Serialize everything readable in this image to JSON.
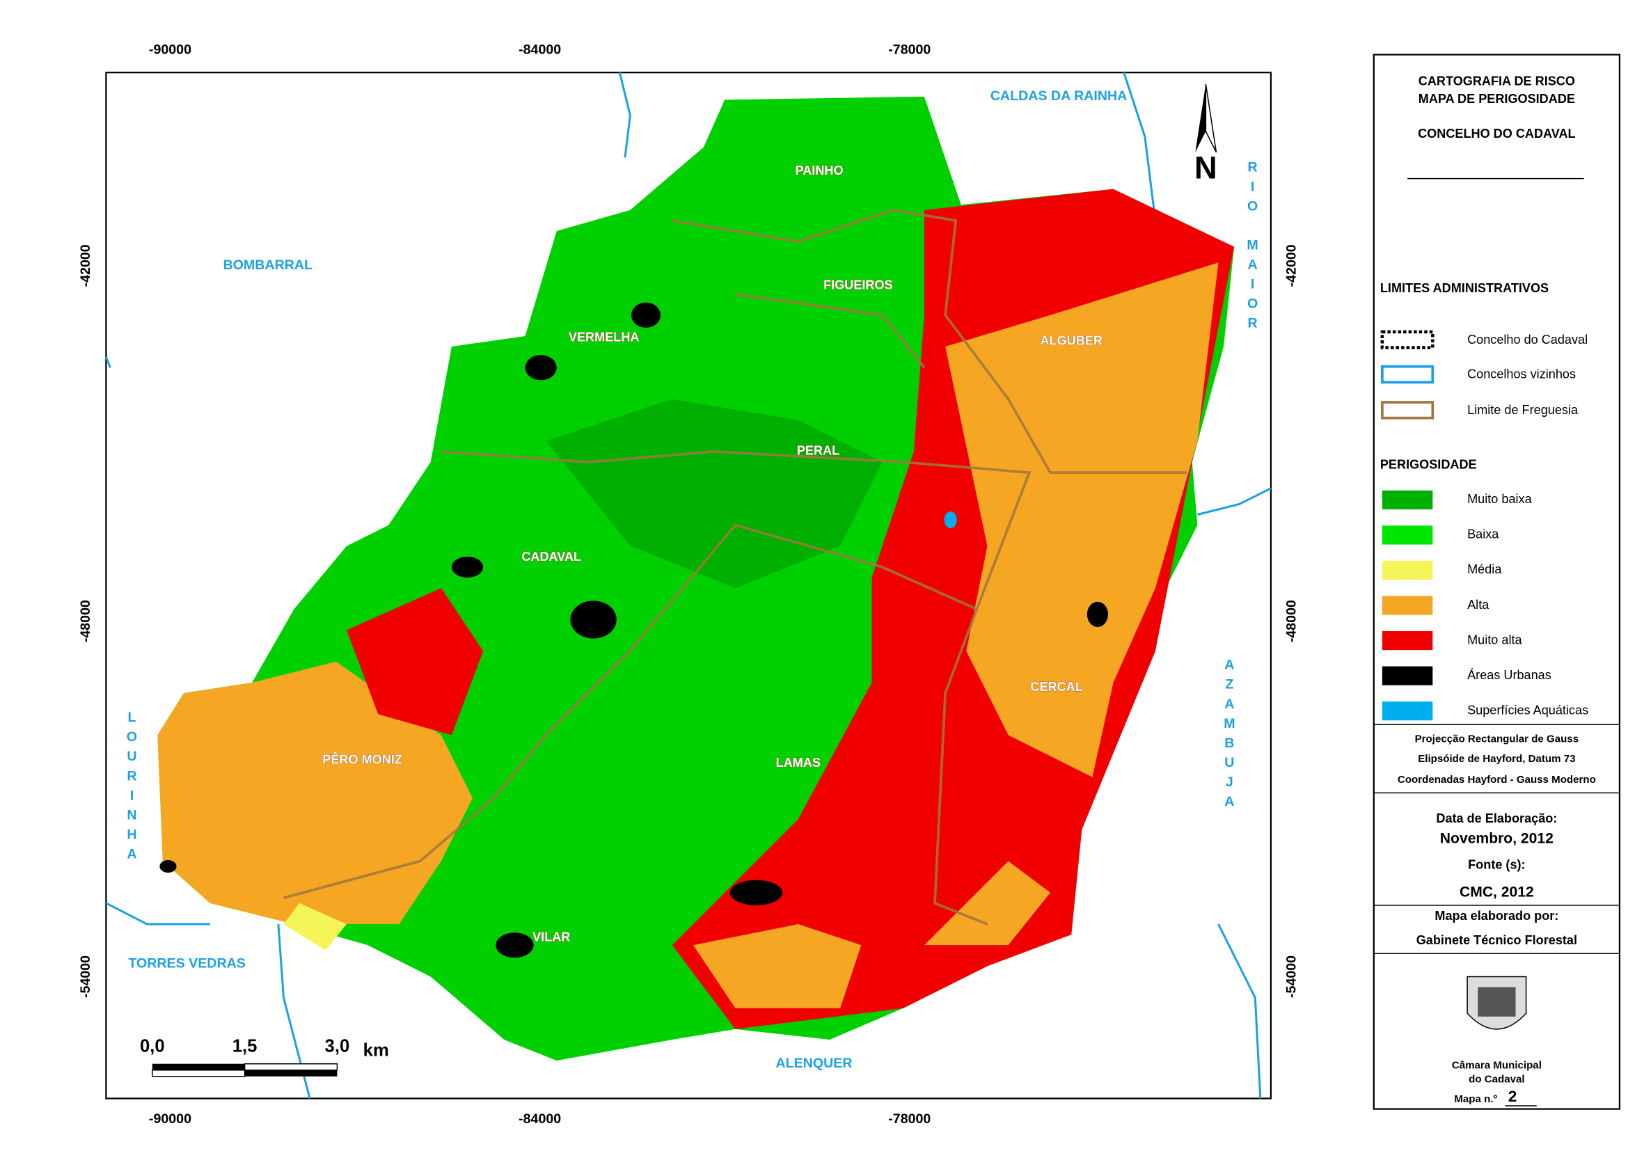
{
  "coordinates": {
    "x_labels": [
      -90000,
      -84000,
      -78000
    ],
    "y_labels": [
      -42000,
      -48000,
      -54000
    ]
  },
  "neighbours": [
    "CALDAS DA RAINHA",
    "BOMBARRAL",
    "RIO MAIOR",
    "AZAMBUJA",
    "LOURINHA",
    "TORRES VEDRAS",
    "ALENQUER"
  ],
  "places": [
    "PAINHO",
    "FIGUEIROS",
    "VERMELHA",
    "ALGUBER",
    "PERAL",
    "CADAVAL",
    "CERCAL",
    "PÊRO MONIZ",
    "LAMAS",
    "VILAR"
  ],
  "north": "N",
  "scale_bar": {
    "labels": [
      "0,0",
      "1,5",
      "3,0"
    ],
    "unit": "km"
  },
  "legend": {
    "title": [
      "CARTOGRAFIA DE RISCO",
      "MAPA DE PERIGOSIDADE",
      "CONCELHO DO CADAVAL"
    ],
    "admin_title": "LIMITES ADMINISTRATIVOS",
    "admin": [
      {
        "label": "Concelho do Cadaval"
      },
      {
        "label": "Concelhos vizinhos"
      },
      {
        "label": "Limite de Freguesia"
      }
    ],
    "hazard_title": "PERIGOSIDADE",
    "hazard": [
      {
        "label": "Muito baixa",
        "color": "#00b000"
      },
      {
        "label": "Baixa",
        "color": "#00e600"
      },
      {
        "label": "Média",
        "color": "#f5f55a"
      },
      {
        "label": "Alta",
        "color": "#f5a623"
      },
      {
        "label": "Muito alta",
        "color": "#f00000"
      },
      {
        "label": "Áreas Urbanas",
        "color": "#000000"
      },
      {
        "label": "Superfícies Aquáticas",
        "color": "#00aeef"
      }
    ]
  },
  "projection": [
    "Projecção Rectangular de Gauss",
    "Elipsóide de Hayford, Datum 73",
    "Coordenadas Hayford - Gauss Moderno"
  ],
  "info": {
    "date_label": "Data de Elaboração:",
    "date": "Novembro, 2012",
    "source_label": "Fonte (s):",
    "source": "CMC, 2012",
    "author_label": "Mapa elaborado por:",
    "author": "Gabinete Técnico Florestal",
    "institution": [
      "Câmara Municipal",
      "do Cadaval"
    ],
    "map_label": "Mapa n.º",
    "map_number": "2"
  }
}
